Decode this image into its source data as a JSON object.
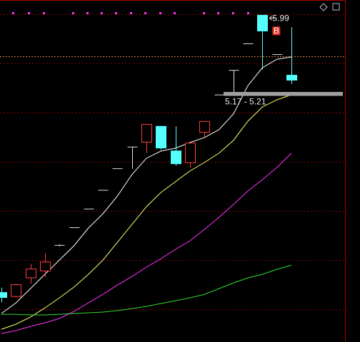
{
  "chart_data": {
    "type": "candlestick",
    "candles": {
      "open": [
        3.17,
        3.13,
        3.32,
        3.39,
        3.65,
        3.83,
        4.02,
        4.21,
        4.43,
        4.65,
        4.7,
        4.86,
        4.61,
        4.49,
        4.8,
        5.18,
        5.43,
        5.7,
        5.99,
        5.59,
        5.38
      ],
      "high": [
        3.22,
        3.26,
        3.46,
        3.57,
        3.66,
        3.83,
        4.02,
        4.21,
        4.43,
        4.65,
        4.88,
        4.86,
        4.86,
        4.69,
        4.91,
        5.18,
        5.43,
        5.7,
        5.99,
        5.59,
        5.87
      ],
      "low": [
        3.07,
        3.12,
        3.26,
        3.33,
        3.64,
        3.83,
        4.02,
        4.21,
        4.43,
        4.43,
        4.59,
        4.62,
        4.46,
        4.44,
        4.75,
        5.18,
        5.2,
        5.7,
        5.44,
        5.59,
        5.29
      ],
      "close": [
        3.12,
        3.25,
        3.41,
        3.48,
        3.65,
        3.83,
        4.02,
        4.21,
        4.43,
        4.65,
        4.88,
        4.64,
        4.48,
        4.69,
        4.91,
        5.18,
        5.43,
        5.7,
        5.83,
        5.59,
        5.33
      ]
    },
    "up_color": "#ff3c3c",
    "down_color": "#54ffff",
    "doji_color": "#e0e0e0",
    "series": [
      {
        "color": "#ffffff",
        "values": [
          2.957,
          3.065,
          3.21,
          3.355,
          3.5,
          3.645,
          3.826,
          3.971,
          4.152,
          4.37,
          4.536,
          4.609,
          4.638,
          4.696,
          4.746,
          4.826,
          4.986,
          5.275,
          5.457,
          5.543,
          5.565
        ]
      },
      {
        "color": "#ffff66",
        "values": [
          2.797,
          2.848,
          2.92,
          3.014,
          3.116,
          3.225,
          3.355,
          3.5,
          3.681,
          3.862,
          4.043,
          4.188,
          4.297,
          4.406,
          4.493,
          4.587,
          4.717,
          4.913,
          5.058,
          5.13,
          5.181
        ]
      },
      {
        "color": "#ff33ff",
        "values": [
          2.754,
          2.783,
          2.826,
          2.862,
          2.906,
          2.978,
          3.065,
          3.152,
          3.246,
          3.333,
          3.428,
          3.514,
          3.609,
          3.696,
          3.812,
          3.935,
          4.065,
          4.203,
          4.319,
          4.442,
          4.587
        ]
      },
      {
        "color": "#33dd33",
        "values": [
          2.949,
          2.949,
          2.942,
          2.942,
          2.949,
          2.957,
          2.964,
          2.971,
          2.986,
          3.007,
          3.029,
          3.058,
          3.087,
          3.116,
          3.152,
          3.21,
          3.268,
          3.319,
          3.355,
          3.406,
          3.449
        ]
      }
    ],
    "ylim": [
      2.667,
      6.145
    ],
    "yticks": [
      3.0,
      3.5,
      4.0,
      4.5,
      5.0,
      5.5,
      6.0
    ],
    "grid": true,
    "reference_price": 5.57,
    "range": {
      "low": 5.17,
      "high": 5.21,
      "label": "5.17 - 5.21"
    },
    "high_label": "5.99",
    "signal_label": "B"
  }
}
